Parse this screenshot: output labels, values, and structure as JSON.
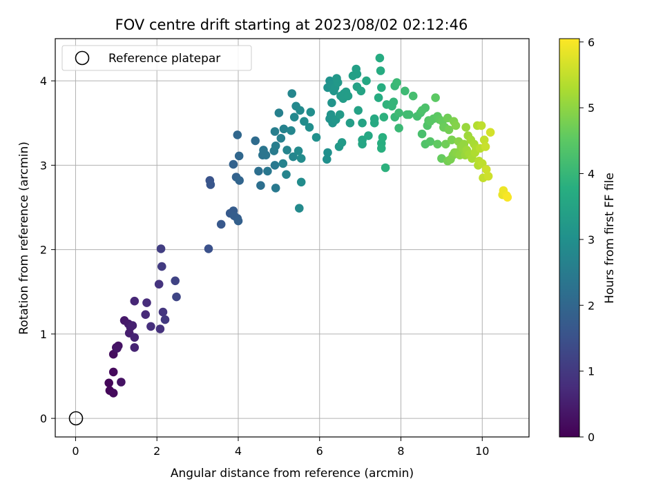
{
  "chart_data": {
    "type": "scatter",
    "title": "FOV centre drift starting at 2023/08/02 02:12:46",
    "xlabel": "Angular distance from reference (arcmin)",
    "ylabel": "Rotation from reference (arcmin)",
    "xlim": [
      -0.5,
      11.15
    ],
    "ylim": [
      -0.22,
      4.5
    ],
    "xticks": [
      0,
      2,
      4,
      6,
      8,
      10
    ],
    "yticks": [
      0,
      1,
      2,
      3,
      4
    ],
    "grid": true,
    "legend": {
      "position": "top-left",
      "entries": [
        "Reference platepar"
      ]
    },
    "reference_point": {
      "label": "Reference platepar",
      "x": 0,
      "y": 0
    },
    "colorbar": {
      "label": "Hours from first FF file",
      "range": [
        0,
        6.05
      ],
      "ticks": [
        0,
        1,
        2,
        3,
        4,
        5,
        6
      ],
      "colormap": "viridis"
    },
    "points": [
      [
        0.82,
        0.42,
        0.1
      ],
      [
        0.84,
        0.33,
        0.1
      ],
      [
        0.93,
        0.3,
        0.15
      ],
      [
        0.93,
        0.55,
        0.15
      ],
      [
        0.93,
        0.76,
        0.2
      ],
      [
        1.0,
        0.84,
        0.25
      ],
      [
        1.05,
        0.86,
        0.3
      ],
      [
        1.12,
        0.43,
        0.3
      ],
      [
        1.02,
        0.83,
        0.35
      ],
      [
        1.2,
        1.16,
        0.4
      ],
      [
        1.3,
        1.12,
        0.45
      ],
      [
        1.35,
        1.08,
        0.5
      ],
      [
        1.32,
        1.01,
        0.5
      ],
      [
        1.4,
        1.1,
        0.55
      ],
      [
        1.45,
        0.96,
        0.6
      ],
      [
        1.45,
        0.84,
        0.6
      ],
      [
        1.45,
        1.39,
        0.65
      ],
      [
        1.72,
        1.23,
        0.7
      ],
      [
        1.75,
        1.37,
        0.75
      ],
      [
        1.85,
        1.09,
        0.8
      ],
      [
        2.08,
        1.06,
        0.85
      ],
      [
        2.05,
        1.59,
        0.9
      ],
      [
        2.15,
        1.26,
        0.95
      ],
      [
        2.2,
        1.17,
        1.0
      ],
      [
        2.12,
        1.8,
        1.05
      ],
      [
        2.1,
        2.01,
        1.1
      ],
      [
        2.45,
        1.63,
        1.2
      ],
      [
        2.48,
        1.44,
        1.25
      ],
      [
        3.27,
        2.01,
        1.5
      ],
      [
        3.3,
        2.82,
        1.55
      ],
      [
        3.32,
        2.77,
        1.6
      ],
      [
        3.58,
        2.3,
        1.65
      ],
      [
        3.8,
        2.43,
        1.7
      ],
      [
        3.88,
        2.46,
        1.75
      ],
      [
        3.9,
        2.4,
        1.8
      ],
      [
        3.98,
        2.37,
        1.8
      ],
      [
        4.0,
        2.34,
        1.85
      ],
      [
        3.88,
        3.01,
        1.9
      ],
      [
        3.95,
        2.86,
        1.9
      ],
      [
        4.03,
        2.82,
        1.95
      ],
      [
        4.02,
        3.11,
        2.0
      ],
      [
        3.98,
        3.36,
        2.0
      ],
      [
        4.42,
        3.29,
        2.1
      ],
      [
        4.5,
        2.93,
        2.2
      ],
      [
        4.55,
        2.76,
        2.2
      ],
      [
        4.6,
        3.12,
        2.3
      ],
      [
        4.68,
        3.12,
        2.35
      ],
      [
        4.62,
        3.18,
        2.35
      ],
      [
        4.72,
        2.93,
        2.4
      ],
      [
        4.92,
        2.73,
        2.45
      ],
      [
        4.9,
        3.0,
        2.45
      ],
      [
        4.88,
        3.17,
        2.5
      ],
      [
        4.9,
        3.4,
        2.55
      ],
      [
        4.92,
        3.23,
        2.55
      ],
      [
        5.0,
        3.62,
        2.6
      ],
      [
        5.05,
        3.32,
        2.6
      ],
      [
        5.1,
        3.02,
        2.65
      ],
      [
        5.12,
        3.43,
        2.65
      ],
      [
        5.18,
        2.89,
        2.7
      ],
      [
        5.2,
        3.18,
        2.7
      ],
      [
        5.3,
        3.41,
        2.75
      ],
      [
        5.35,
        3.1,
        2.75
      ],
      [
        5.38,
        3.57,
        2.8
      ],
      [
        5.42,
        3.7,
        2.8
      ],
      [
        5.48,
        3.17,
        2.85
      ],
      [
        5.5,
        2.49,
        2.85
      ],
      [
        5.52,
        3.65,
        2.85
      ],
      [
        5.55,
        2.8,
        2.9
      ],
      [
        5.55,
        3.08,
        2.9
      ],
      [
        5.62,
        3.52,
        2.9
      ],
      [
        5.75,
        3.45,
        2.95
      ],
      [
        5.78,
        3.63,
        2.95
      ],
      [
        5.92,
        3.33,
        3.0
      ],
      [
        5.32,
        3.85,
        2.75
      ],
      [
        6.18,
        3.07,
        3.0
      ],
      [
        6.2,
        3.15,
        3.0
      ],
      [
        6.2,
        3.92,
        3.05
      ],
      [
        6.25,
        3.55,
        3.05
      ],
      [
        6.25,
        4.0,
        3.05
      ],
      [
        6.28,
        3.6,
        3.1
      ],
      [
        6.3,
        3.74,
        3.1
      ],
      [
        6.3,
        3.95,
        3.1
      ],
      [
        6.32,
        3.5,
        3.1
      ],
      [
        6.35,
        3.88,
        3.15
      ],
      [
        6.38,
        3.92,
        3.15
      ],
      [
        6.4,
        3.54,
        3.15
      ],
      [
        6.45,
        3.98,
        3.2
      ],
      [
        6.42,
        4.03,
        3.2
      ],
      [
        6.48,
        3.22,
        3.2
      ],
      [
        6.5,
        3.6,
        3.25
      ],
      [
        6.55,
        3.27,
        3.25
      ],
      [
        6.52,
        3.82,
        3.25
      ],
      [
        6.58,
        3.79,
        3.3
      ],
      [
        6.6,
        3.85,
        3.3
      ],
      [
        6.65,
        3.87,
        3.3
      ],
      [
        6.7,
        3.82,
        3.35
      ],
      [
        6.75,
        3.5,
        3.35
      ],
      [
        6.82,
        4.06,
        3.4
      ],
      [
        6.9,
        4.14,
        3.4
      ],
      [
        6.92,
        4.08,
        3.4
      ],
      [
        6.92,
        3.93,
        3.45
      ],
      [
        6.95,
        3.65,
        3.45
      ],
      [
        7.02,
        3.88,
        3.5
      ],
      [
        7.05,
        3.5,
        3.5
      ],
      [
        7.05,
        3.3,
        3.55
      ],
      [
        7.05,
        3.25,
        3.55
      ],
      [
        7.15,
        4.0,
        3.6
      ],
      [
        7.2,
        3.35,
        3.6
      ],
      [
        7.35,
        3.55,
        3.65
      ],
      [
        7.35,
        3.5,
        3.65
      ],
      [
        7.45,
        3.8,
        3.7
      ],
      [
        7.48,
        4.27,
        3.7
      ],
      [
        7.5,
        4.12,
        3.7
      ],
      [
        7.52,
        3.92,
        3.75
      ],
      [
        7.52,
        3.26,
        3.75
      ],
      [
        7.55,
        3.33,
        3.8
      ],
      [
        7.52,
        3.2,
        3.8
      ],
      [
        7.58,
        3.57,
        3.85
      ],
      [
        7.62,
        2.97,
        3.85
      ],
      [
        7.65,
        3.72,
        3.9
      ],
      [
        7.78,
        3.7,
        3.95
      ],
      [
        7.82,
        3.75,
        3.95
      ],
      [
        7.85,
        3.57,
        4.0
      ],
      [
        7.85,
        3.94,
        4.0
      ],
      [
        7.9,
        3.98,
        4.05
      ],
      [
        7.95,
        3.44,
        4.05
      ],
      [
        7.95,
        3.62,
        4.1
      ],
      [
        8.1,
        3.88,
        4.1
      ],
      [
        8.15,
        3.6,
        4.15
      ],
      [
        8.2,
        3.6,
        4.15
      ],
      [
        8.3,
        3.82,
        4.2
      ],
      [
        8.4,
        3.58,
        4.2
      ],
      [
        8.48,
        3.62,
        4.25
      ],
      [
        8.52,
        3.37,
        4.25
      ],
      [
        8.52,
        3.65,
        4.3
      ],
      [
        8.6,
        3.68,
        4.3
      ],
      [
        8.6,
        3.25,
        4.35
      ],
      [
        8.65,
        3.47,
        4.35
      ],
      [
        8.68,
        3.53,
        4.4
      ],
      [
        8.72,
        3.28,
        4.4
      ],
      [
        8.72,
        3.52,
        4.45
      ],
      [
        8.8,
        3.55,
        4.45
      ],
      [
        8.85,
        3.8,
        4.5
      ],
      [
        8.9,
        3.58,
        4.5
      ],
      [
        8.9,
        3.25,
        4.55
      ],
      [
        8.95,
        3.54,
        4.55
      ],
      [
        9.0,
        3.08,
        4.6
      ],
      [
        9.02,
        3.52,
        4.6
      ],
      [
        9.05,
        3.45,
        4.65
      ],
      [
        9.08,
        3.45,
        4.65
      ],
      [
        9.1,
        3.25,
        4.7
      ],
      [
        9.15,
        3.56,
        4.7
      ],
      [
        9.15,
        3.05,
        4.75
      ],
      [
        9.18,
        3.42,
        4.75
      ],
      [
        9.22,
        3.07,
        4.8
      ],
      [
        9.25,
        3.3,
        4.8
      ],
      [
        9.28,
        3.12,
        4.85
      ],
      [
        9.3,
        3.52,
        4.85
      ],
      [
        9.32,
        3.15,
        4.9
      ],
      [
        9.35,
        3.47,
        4.9
      ],
      [
        9.38,
        3.15,
        4.95
      ],
      [
        9.42,
        3.28,
        4.95
      ],
      [
        9.45,
        3.12,
        5.0
      ],
      [
        9.48,
        3.22,
        5.0
      ],
      [
        9.52,
        3.2,
        5.05
      ],
      [
        9.55,
        3.25,
        5.05
      ],
      [
        9.58,
        3.12,
        5.1
      ],
      [
        9.6,
        3.45,
        5.1
      ],
      [
        9.62,
        3.18,
        5.15
      ],
      [
        9.65,
        3.35,
        5.15
      ],
      [
        9.68,
        3.13,
        5.2
      ],
      [
        9.72,
        3.3,
        5.2
      ],
      [
        9.75,
        3.08,
        5.25
      ],
      [
        9.8,
        3.25,
        5.25
      ],
      [
        9.82,
        3.15,
        5.3
      ],
      [
        9.85,
        3.2,
        5.3
      ],
      [
        9.88,
        3.47,
        5.35
      ],
      [
        9.9,
        3.0,
        5.35
      ],
      [
        9.92,
        3.05,
        5.4
      ],
      [
        9.95,
        3.2,
        5.4
      ],
      [
        9.98,
        3.47,
        5.45
      ],
      [
        10.0,
        3.02,
        5.45
      ],
      [
        10.02,
        2.85,
        5.5
      ],
      [
        10.05,
        3.3,
        5.5
      ],
      [
        10.08,
        3.22,
        5.55
      ],
      [
        10.1,
        2.95,
        5.6
      ],
      [
        10.15,
        2.87,
        5.6
      ],
      [
        10.2,
        3.39,
        5.65
      ],
      [
        10.5,
        2.65,
        5.85
      ],
      [
        10.52,
        2.7,
        5.9
      ],
      [
        10.6,
        2.64,
        5.95
      ],
      [
        10.62,
        2.62,
        6.0
      ]
    ]
  }
}
